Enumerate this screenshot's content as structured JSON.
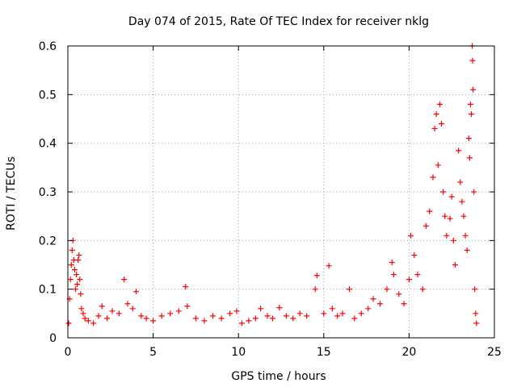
{
  "chart_data": {
    "type": "scatter",
    "title": "Day 074 of 2015, Rate Of TEC Index for receiver nklg",
    "xlabel": "GPS time / hours",
    "ylabel": "ROTI / TECUs",
    "xlim": [
      0,
      25
    ],
    "ylim": [
      0,
      0.6
    ],
    "xticks": [
      "0",
      "5",
      "10",
      "15",
      "20",
      "25"
    ],
    "yticks": [
      "0",
      "0.1",
      "0.2",
      "0.3",
      "0.4",
      "0.5",
      "0.6"
    ],
    "grid": true,
    "marker": "+",
    "color": "#ff0000",
    "series": [
      {
        "points": [
          [
            0.05,
            0.03
          ],
          [
            0.1,
            0.08
          ],
          [
            0.15,
            0.12
          ],
          [
            0.2,
            0.15
          ],
          [
            0.25,
            0.18
          ],
          [
            0.3,
            0.2
          ],
          [
            0.35,
            0.16
          ],
          [
            0.4,
            0.14
          ],
          [
            0.45,
            0.1
          ],
          [
            0.5,
            0.13
          ],
          [
            0.55,
            0.11
          ],
          [
            0.6,
            0.16
          ],
          [
            0.65,
            0.17
          ],
          [
            0.7,
            0.12
          ],
          [
            0.75,
            0.09
          ],
          [
            0.8,
            0.06
          ],
          [
            0.9,
            0.05
          ],
          [
            1.0,
            0.04
          ],
          [
            1.2,
            0.035
          ],
          [
            1.5,
            0.03
          ],
          [
            1.8,
            0.045
          ],
          [
            2.0,
            0.065
          ],
          [
            2.3,
            0.04
          ],
          [
            2.6,
            0.055
          ],
          [
            3.0,
            0.05
          ],
          [
            3.3,
            0.12
          ],
          [
            3.5,
            0.07
          ],
          [
            3.8,
            0.06
          ],
          [
            4.0,
            0.095
          ],
          [
            4.3,
            0.045
          ],
          [
            4.6,
            0.04
          ],
          [
            5.0,
            0.035
          ],
          [
            5.5,
            0.045
          ],
          [
            6.0,
            0.05
          ],
          [
            6.5,
            0.055
          ],
          [
            6.9,
            0.105
          ],
          [
            7.0,
            0.065
          ],
          [
            7.5,
            0.04
          ],
          [
            8.0,
            0.035
          ],
          [
            8.5,
            0.045
          ],
          [
            9.0,
            0.04
          ],
          [
            9.5,
            0.05
          ],
          [
            9.9,
            0.055
          ],
          [
            10.2,
            0.03
          ],
          [
            10.6,
            0.035
          ],
          [
            11.0,
            0.04
          ],
          [
            11.3,
            0.06
          ],
          [
            11.7,
            0.045
          ],
          [
            12.0,
            0.04
          ],
          [
            12.4,
            0.062
          ],
          [
            12.8,
            0.045
          ],
          [
            13.2,
            0.04
          ],
          [
            13.6,
            0.05
          ],
          [
            14.0,
            0.045
          ],
          [
            14.5,
            0.1
          ],
          [
            14.6,
            0.128
          ],
          [
            15.0,
            0.05
          ],
          [
            15.3,
            0.148
          ],
          [
            15.5,
            0.06
          ],
          [
            15.8,
            0.045
          ],
          [
            16.1,
            0.05
          ],
          [
            16.5,
            0.1
          ],
          [
            16.8,
            0.04
          ],
          [
            17.2,
            0.05
          ],
          [
            17.6,
            0.06
          ],
          [
            17.9,
            0.08
          ],
          [
            18.3,
            0.07
          ],
          [
            18.7,
            0.1
          ],
          [
            19.0,
            0.155
          ],
          [
            19.1,
            0.13
          ],
          [
            19.4,
            0.09
          ],
          [
            19.7,
            0.07
          ],
          [
            20.0,
            0.12
          ],
          [
            20.1,
            0.21
          ],
          [
            20.3,
            0.17
          ],
          [
            20.5,
            0.13
          ],
          [
            20.8,
            0.1
          ],
          [
            21.0,
            0.23
          ],
          [
            21.2,
            0.26
          ],
          [
            21.4,
            0.33
          ],
          [
            21.5,
            0.43
          ],
          [
            21.6,
            0.46
          ],
          [
            21.7,
            0.355
          ],
          [
            21.8,
            0.48
          ],
          [
            21.9,
            0.44
          ],
          [
            22.0,
            0.3
          ],
          [
            22.1,
            0.25
          ],
          [
            22.2,
            0.21
          ],
          [
            22.4,
            0.245
          ],
          [
            22.5,
            0.29
          ],
          [
            22.6,
            0.2
          ],
          [
            22.7,
            0.15
          ],
          [
            22.9,
            0.385
          ],
          [
            23.0,
            0.32
          ],
          [
            23.1,
            0.28
          ],
          [
            23.2,
            0.25
          ],
          [
            23.3,
            0.21
          ],
          [
            23.4,
            0.18
          ],
          [
            23.5,
            0.41
          ],
          [
            23.55,
            0.37
          ],
          [
            23.6,
            0.48
          ],
          [
            23.65,
            0.46
          ],
          [
            23.7,
            0.6
          ],
          [
            23.72,
            0.57
          ],
          [
            23.75,
            0.51
          ],
          [
            23.8,
            0.3
          ],
          [
            23.85,
            0.1
          ],
          [
            23.9,
            0.05
          ],
          [
            23.95,
            0.03
          ]
        ]
      }
    ]
  }
}
